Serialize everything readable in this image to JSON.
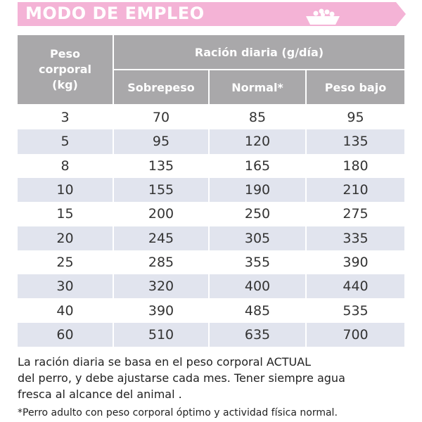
{
  "header": {
    "title": "MODO DE EMPLEO"
  },
  "table": {
    "weight_header": [
      "Peso",
      "corporal",
      "(kg)"
    ],
    "ration_header": "Ración diaria (g/día)",
    "columns": [
      "Sobrepeso",
      "Normal*",
      "Peso bajo"
    ],
    "rows": [
      [
        3,
        70,
        85,
        95
      ],
      [
        5,
        95,
        120,
        135
      ],
      [
        8,
        135,
        165,
        180
      ],
      [
        10,
        155,
        190,
        210
      ],
      [
        15,
        200,
        250,
        275
      ],
      [
        20,
        245,
        305,
        335
      ],
      [
        25,
        285,
        355,
        390
      ],
      [
        30,
        320,
        400,
        440
      ],
      [
        40,
        390,
        485,
        535
      ],
      [
        60,
        510,
        635,
        700
      ]
    ]
  },
  "notes": {
    "main": [
      "La ración diaria se basa en el peso corporal ACTUAL",
      "del perro, y debe ajustarse cada mes. Tener siempre agua",
      "fresca al alcance del animal ."
    ],
    "footnote": "*Perro adulto con peso corporal óptimo y actividad física normal."
  }
}
